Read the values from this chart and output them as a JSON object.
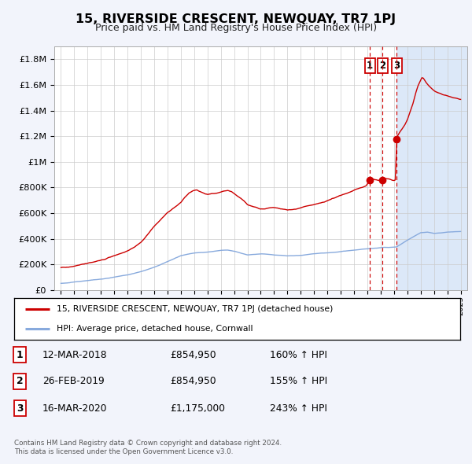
{
  "title": "15, RIVERSIDE CRESCENT, NEWQUAY, TR7 1PJ",
  "subtitle": "Price paid vs. HM Land Registry's House Price Index (HPI)",
  "footer1": "Contains HM Land Registry data © Crown copyright and database right 2024.",
  "footer2": "This data is licensed under the Open Government Licence v3.0.",
  "legend_line1": "15, RIVERSIDE CRESCENT, NEWQUAY, TR7 1PJ (detached house)",
  "legend_line2": "HPI: Average price, detached house, Cornwall",
  "transactions": [
    {
      "num": 1,
      "date": "12-MAR-2018",
      "price": "£854,950",
      "pct": "160% ↑ HPI",
      "year": 2018.19,
      "val": 854950
    },
    {
      "num": 2,
      "date": "26-FEB-2019",
      "price": "£854,950",
      "pct": "155% ↑ HPI",
      "year": 2019.15,
      "val": 854950
    },
    {
      "num": 3,
      "date": "16-MAR-2020",
      "price": "£1,175,000",
      "pct": "243% ↑ HPI",
      "year": 2020.21,
      "val": 1175000
    }
  ],
  "ylim": [
    0,
    1900000
  ],
  "xlim": [
    1994.5,
    2025.5
  ],
  "yticks": [
    0,
    200000,
    400000,
    600000,
    800000,
    1000000,
    1200000,
    1400000,
    1600000,
    1800000
  ],
  "ytick_labels": [
    "£0",
    "£200K",
    "£400K",
    "£600K",
    "£800K",
    "£1M",
    "£1.2M",
    "£1.4M",
    "£1.6M",
    "£1.8M"
  ],
  "background_color": "#f2f4fb",
  "plot_bg": "#ffffff",
  "red_color": "#cc0000",
  "blue_color": "#88aadd",
  "grid_color": "#cccccc",
  "shade_color": "#dce8f8"
}
